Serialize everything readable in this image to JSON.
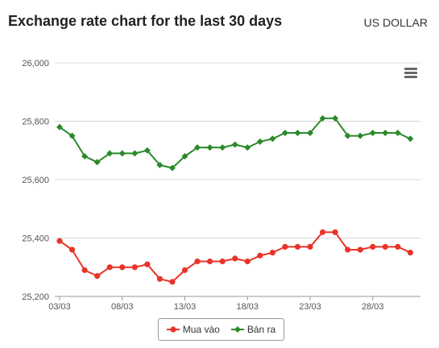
{
  "header": {
    "title": "Exchange rate chart for the last 30 days",
    "currency": "US DOLLAR"
  },
  "icons": {
    "menu": "hamburger-menu-icon"
  },
  "colors": {
    "buy": "#e8342a",
    "sell": "#2a8a2a",
    "grid": "#d8d8d8",
    "axis_text": "#555555"
  },
  "chart_data": {
    "type": "line",
    "title": "Exchange rate chart for the last 30 days",
    "xlabel": "",
    "ylabel": "",
    "ylim": [
      25200,
      26000
    ],
    "y_ticks": [
      "25,200",
      "25,400",
      "25,600",
      "25,800",
      "26,000"
    ],
    "x_ticks": [
      "03/03",
      "08/03",
      "13/03",
      "18/03",
      "23/03",
      "28/03"
    ],
    "categories": [
      "03/03",
      "04/03",
      "05/03",
      "06/03",
      "07/03",
      "08/03",
      "09/03",
      "10/03",
      "11/03",
      "12/03",
      "13/03",
      "14/03",
      "15/03",
      "16/03",
      "17/03",
      "18/03",
      "19/03",
      "20/03",
      "21/03",
      "22/03",
      "23/03",
      "24/03",
      "25/03",
      "26/03",
      "27/03",
      "28/03",
      "29/03",
      "30/03",
      "31/03"
    ],
    "series": [
      {
        "name": "Mua vào",
        "values": [
          25390,
          25360,
          25290,
          25270,
          25300,
          25300,
          25300,
          25310,
          25260,
          25250,
          25290,
          25320,
          25320,
          25320,
          25330,
          25320,
          25340,
          25350,
          25370,
          25370,
          25370,
          25420,
          25420,
          25360,
          25360,
          25370,
          25370,
          25370,
          25350
        ]
      },
      {
        "name": "Bán ra",
        "values": [
          25780,
          25750,
          25680,
          25660,
          25690,
          25690,
          25690,
          25700,
          25650,
          25640,
          25680,
          25710,
          25710,
          25710,
          25720,
          25710,
          25730,
          25740,
          25760,
          25760,
          25760,
          25810,
          25810,
          25750,
          25750,
          25760,
          25760,
          25760,
          25740
        ]
      }
    ],
    "grid": true,
    "legend_position": "bottom-center"
  }
}
